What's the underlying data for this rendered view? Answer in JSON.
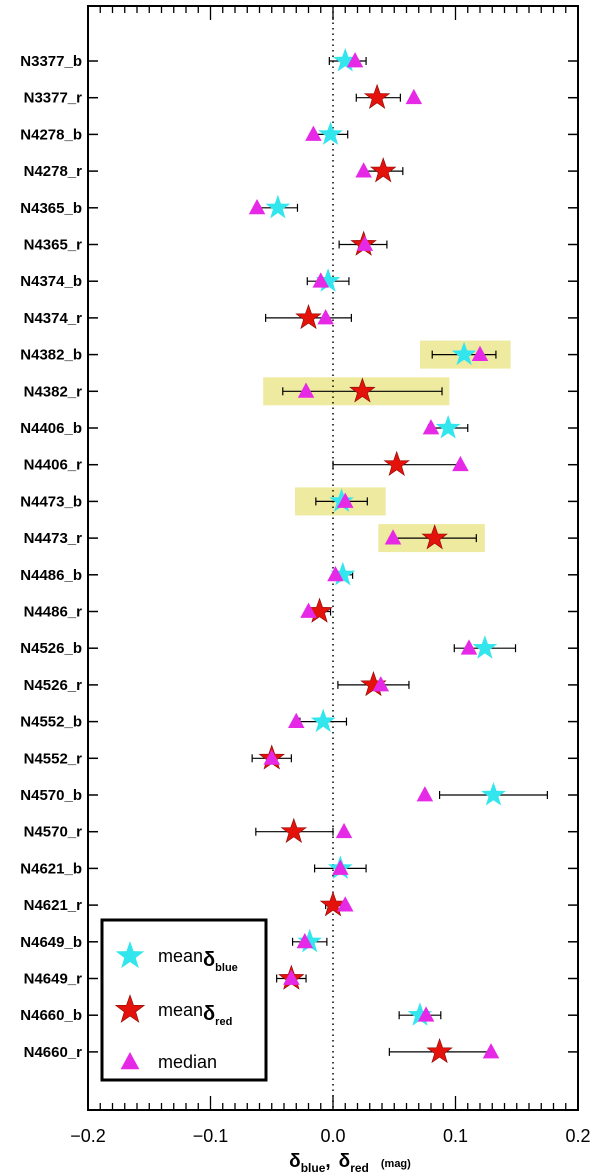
{
  "chart_data": {
    "type": "scatter",
    "title": "",
    "xlabel": {
      "delta": "δ",
      "blue_sub": "blue",
      "sep": ",",
      "red_sub": "red",
      "unit": "(mag)"
    },
    "ylabel": "",
    "xlim": [
      -0.2,
      0.2
    ],
    "xticks": [
      -0.2,
      -0.1,
      0.0,
      0.1,
      0.2
    ],
    "xtick_labels": [
      "−0.2",
      "−0.1",
      "0.0",
      "0.1",
      "0.2"
    ],
    "reference_line_x": 0.0,
    "colors": {
      "mean_blue": "#33e6ee",
      "mean_red": "#e3120b",
      "median": "#e629e6",
      "highlight": "#eeeaa0"
    },
    "legend": {
      "position": "bottom-left",
      "entries": [
        {
          "series": "mean_blue",
          "text": "mean",
          "sub": "δ",
          "subsub": "blue"
        },
        {
          "series": "mean_red",
          "text": "mean",
          "sub": "δ",
          "subsub": "red"
        },
        {
          "series": "median",
          "text": "median"
        }
      ]
    },
    "rows": [
      {
        "label": "N3377_b",
        "kind": "blue",
        "mean": 0.01,
        "err_lo": -0.003,
        "err_hi": 0.027,
        "median": 0.018,
        "highlight": null
      },
      {
        "label": "N3377_r",
        "kind": "red",
        "mean": 0.036,
        "err_lo": 0.019,
        "err_hi": 0.055,
        "median": 0.066,
        "highlight": null
      },
      {
        "label": "N4278_b",
        "kind": "blue",
        "mean": -0.002,
        "err_lo": -0.016,
        "err_hi": 0.012,
        "median": -0.016,
        "highlight": null
      },
      {
        "label": "N4278_r",
        "kind": "red",
        "mean": 0.041,
        "err_lo": 0.025,
        "err_hi": 0.057,
        "median": 0.025,
        "highlight": null
      },
      {
        "label": "N4365_b",
        "kind": "blue",
        "mean": -0.045,
        "err_lo": -0.061,
        "err_hi": -0.029,
        "median": -0.062,
        "highlight": null
      },
      {
        "label": "N4365_r",
        "kind": "red",
        "mean": 0.025,
        "err_lo": 0.005,
        "err_hi": 0.044,
        "median": 0.026,
        "highlight": null
      },
      {
        "label": "N4374_b",
        "kind": "blue",
        "mean": -0.004,
        "err_lo": -0.021,
        "err_hi": 0.013,
        "median": -0.01,
        "highlight": null
      },
      {
        "label": "N4374_r",
        "kind": "red",
        "mean": -0.02,
        "err_lo": -0.055,
        "err_hi": 0.015,
        "median": -0.006,
        "highlight": null
      },
      {
        "label": "N4382_b",
        "kind": "blue",
        "mean": 0.107,
        "err_lo": 0.081,
        "err_hi": 0.133,
        "median": 0.12,
        "highlight": [
          0.071,
          0.145
        ]
      },
      {
        "label": "N4382_r",
        "kind": "red",
        "mean": 0.024,
        "err_lo": -0.041,
        "err_hi": 0.089,
        "median": -0.022,
        "highlight": [
          -0.057,
          0.095
        ]
      },
      {
        "label": "N4406_b",
        "kind": "blue",
        "mean": 0.094,
        "err_lo": 0.078,
        "err_hi": 0.11,
        "median": 0.08,
        "highlight": null
      },
      {
        "label": "N4406_r",
        "kind": "red",
        "mean": 0.052,
        "err_lo": 0.0,
        "err_hi": 0.104,
        "median": 0.104,
        "highlight": null
      },
      {
        "label": "N4473_b",
        "kind": "blue",
        "mean": 0.007,
        "err_lo": -0.014,
        "err_hi": 0.028,
        "median": 0.01,
        "highlight": [
          -0.031,
          0.043
        ]
      },
      {
        "label": "N4473_r",
        "kind": "red",
        "mean": 0.083,
        "err_lo": 0.049,
        "err_hi": 0.117,
        "median": 0.049,
        "highlight": [
          0.037,
          0.124
        ]
      },
      {
        "label": "N4486_b",
        "kind": "blue",
        "mean": 0.008,
        "err_lo": 0.0,
        "err_hi": 0.016,
        "median": 0.002,
        "highlight": null
      },
      {
        "label": "N4486_r",
        "kind": "red",
        "mean": -0.011,
        "err_lo": -0.02,
        "err_hi": -0.002,
        "median": -0.02,
        "highlight": null
      },
      {
        "label": "N4526_b",
        "kind": "blue",
        "mean": 0.124,
        "err_lo": 0.099,
        "err_hi": 0.149,
        "median": 0.111,
        "highlight": null
      },
      {
        "label": "N4526_r",
        "kind": "red",
        "mean": 0.033,
        "err_lo": 0.004,
        "err_hi": 0.062,
        "median": 0.039,
        "highlight": null
      },
      {
        "label": "N4552_b",
        "kind": "blue",
        "mean": -0.008,
        "err_lo": -0.027,
        "err_hi": 0.011,
        "median": -0.03,
        "highlight": null
      },
      {
        "label": "N4552_r",
        "kind": "red",
        "mean": -0.05,
        "err_lo": -0.066,
        "err_hi": -0.034,
        "median": -0.05,
        "highlight": null
      },
      {
        "label": "N4570_b",
        "kind": "blue",
        "mean": 0.131,
        "err_lo": 0.087,
        "err_hi": 0.175,
        "median": 0.075,
        "highlight": null
      },
      {
        "label": "N4570_r",
        "kind": "red",
        "mean": -0.032,
        "err_lo": -0.063,
        "err_hi": 0.0,
        "median": 0.009,
        "highlight": null
      },
      {
        "label": "N4621_b",
        "kind": "blue",
        "mean": 0.006,
        "err_lo": -0.015,
        "err_hi": 0.027,
        "median": 0.006,
        "highlight": null
      },
      {
        "label": "N4621_r",
        "kind": "red",
        "mean": 0.0,
        "err_lo": -0.006,
        "err_hi": 0.006,
        "median": 0.01,
        "highlight": null
      },
      {
        "label": "N4649_b",
        "kind": "blue",
        "mean": -0.019,
        "err_lo": -0.033,
        "err_hi": -0.005,
        "median": -0.023,
        "highlight": null
      },
      {
        "label": "N4649_r",
        "kind": "red",
        "mean": -0.034,
        "err_lo": -0.046,
        "err_hi": -0.022,
        "median": -0.034,
        "highlight": null
      },
      {
        "label": "N4660_b",
        "kind": "blue",
        "mean": 0.071,
        "err_lo": 0.054,
        "err_hi": 0.088,
        "median": 0.076,
        "highlight": null
      },
      {
        "label": "N4660_r",
        "kind": "red",
        "mean": 0.087,
        "err_lo": 0.046,
        "err_hi": 0.128,
        "median": 0.129,
        "highlight": null
      }
    ]
  }
}
